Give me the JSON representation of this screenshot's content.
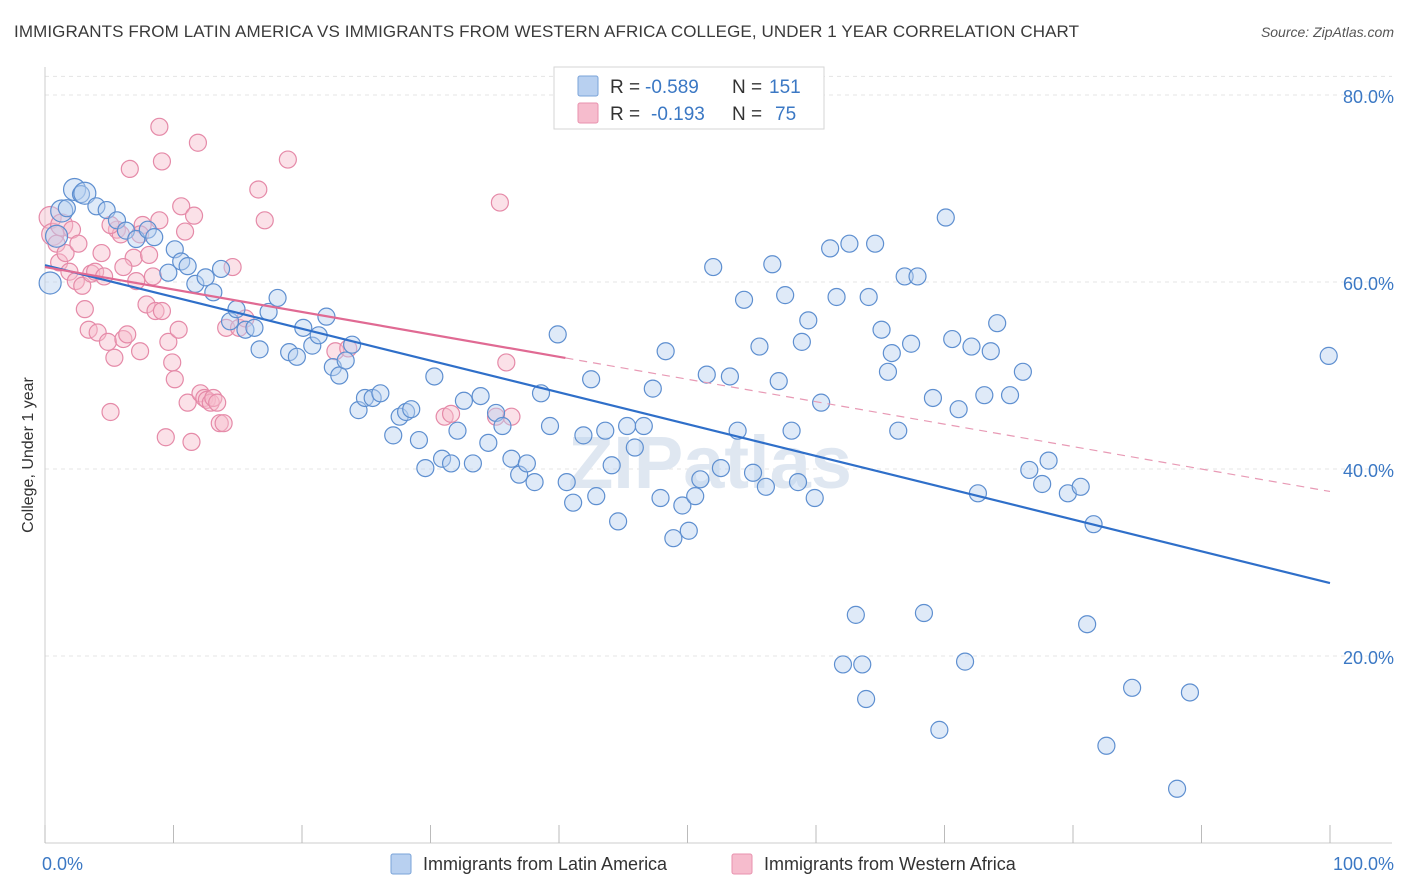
{
  "title": "IMMIGRANTS FROM LATIN AMERICA VS IMMIGRANTS FROM WESTERN AFRICA COLLEGE, UNDER 1 YEAR CORRELATION CHART",
  "source": "Source: ZipAtlas.com",
  "watermark": "ZIPatlas",
  "legend": {
    "series1": {
      "r_label": "R =",
      "r_value": "-0.589",
      "n_label": "N =",
      "n_value": "151"
    },
    "series2": {
      "r_label": "R =",
      "r_value": "-0.193",
      "n_label": "N =",
      "n_value": "75"
    }
  },
  "colors": {
    "blue": "#3b78c4",
    "blue_fill": "#b8d0f0",
    "pink": "#e06a93",
    "pink_fill": "#f6bccd"
  },
  "chart_data": {
    "type": "scatter",
    "title": "IMMIGRANTS FROM LATIN AMERICA VS IMMIGRANTS FROM WESTERN AFRICA COLLEGE, UNDER 1 YEAR CORRELATION CHART",
    "xlabel": "",
    "ylabel": "College, Under 1 year",
    "xlim": [
      0,
      100
    ],
    "ylim": [
      0,
      83
    ],
    "x_tick_labels": [
      "0.0%",
      "100.0%"
    ],
    "y_ticks": [
      20,
      40,
      60,
      80
    ],
    "y_tick_labels": [
      "20.0%",
      "40.0%",
      "60.0%",
      "80.0%"
    ],
    "legend_position": "top-center",
    "series": [
      {
        "name": "Immigrants from Latin America",
        "color": "#3b78c4",
        "trend": {
          "x": [
            0,
            100
          ],
          "y": [
            61.8,
            27.8
          ],
          "solid_until": 100
        },
        "points": [
          [
            0.4,
            59.9
          ],
          [
            0.9,
            64.9
          ],
          [
            1.3,
            67.6
          ],
          [
            1.7,
            67.9
          ],
          [
            2.3,
            69.9
          ],
          [
            2.8,
            69.4
          ],
          [
            3.1,
            69.5
          ],
          [
            4.0,
            68.1
          ],
          [
            4.8,
            67.7
          ],
          [
            5.6,
            66.6
          ],
          [
            6.3,
            65.5
          ],
          [
            7.1,
            64.6
          ],
          [
            8.0,
            65.6
          ],
          [
            8.5,
            64.8
          ],
          [
            9.6,
            61.0
          ],
          [
            10.1,
            63.5
          ],
          [
            10.6,
            62.2
          ],
          [
            11.1,
            61.7
          ],
          [
            11.7,
            59.8
          ],
          [
            12.5,
            60.5
          ],
          [
            13.1,
            58.9
          ],
          [
            13.7,
            61.4
          ],
          [
            14.4,
            55.8
          ],
          [
            14.9,
            57.1
          ],
          [
            15.6,
            54.9
          ],
          [
            16.3,
            55.1
          ],
          [
            16.7,
            52.8
          ],
          [
            17.4,
            56.8
          ],
          [
            18.1,
            58.3
          ],
          [
            19.0,
            52.5
          ],
          [
            19.6,
            52.0
          ],
          [
            20.1,
            55.1
          ],
          [
            20.8,
            53.2
          ],
          [
            21.3,
            54.3
          ],
          [
            21.9,
            56.3
          ],
          [
            22.4,
            50.9
          ],
          [
            22.9,
            50.0
          ],
          [
            23.4,
            51.6
          ],
          [
            23.9,
            53.3
          ],
          [
            24.4,
            46.3
          ],
          [
            24.9,
            47.6
          ],
          [
            25.5,
            47.6
          ],
          [
            26.1,
            48.1
          ],
          [
            27.1,
            43.6
          ],
          [
            27.6,
            45.6
          ],
          [
            28.1,
            46.1
          ],
          [
            28.5,
            46.4
          ],
          [
            29.1,
            43.1
          ],
          [
            29.6,
            40.1
          ],
          [
            30.3,
            49.9
          ],
          [
            30.9,
            41.1
          ],
          [
            31.6,
            40.6
          ],
          [
            32.1,
            44.1
          ],
          [
            32.6,
            47.3
          ],
          [
            33.3,
            40.6
          ],
          [
            33.9,
            47.8
          ],
          [
            34.5,
            42.8
          ],
          [
            35.1,
            46.0
          ],
          [
            35.6,
            44.6
          ],
          [
            36.3,
            41.1
          ],
          [
            36.9,
            39.4
          ],
          [
            37.5,
            40.6
          ],
          [
            38.1,
            38.6
          ],
          [
            38.6,
            48.1
          ],
          [
            39.3,
            44.6
          ],
          [
            39.9,
            54.4
          ],
          [
            40.6,
            38.6
          ],
          [
            41.1,
            36.4
          ],
          [
            41.9,
            43.6
          ],
          [
            42.5,
            49.6
          ],
          [
            42.9,
            37.1
          ],
          [
            43.6,
            44.1
          ],
          [
            44.1,
            40.4
          ],
          [
            44.6,
            34.4
          ],
          [
            45.3,
            44.6
          ],
          [
            45.9,
            42.3
          ],
          [
            46.6,
            44.6
          ],
          [
            47.3,
            48.6
          ],
          [
            47.9,
            36.9
          ],
          [
            48.3,
            52.6
          ],
          [
            48.9,
            32.6
          ],
          [
            49.6,
            36.1
          ],
          [
            50.1,
            33.4
          ],
          [
            50.6,
            37.1
          ],
          [
            51.0,
            38.9
          ],
          [
            51.5,
            50.1
          ],
          [
            52.0,
            61.6
          ],
          [
            52.6,
            40.1
          ],
          [
            53.3,
            49.9
          ],
          [
            53.9,
            44.1
          ],
          [
            54.4,
            58.1
          ],
          [
            55.1,
            39.6
          ],
          [
            55.6,
            53.1
          ],
          [
            56.1,
            38.1
          ],
          [
            56.6,
            61.9
          ],
          [
            57.1,
            49.4
          ],
          [
            57.6,
            58.6
          ],
          [
            58.1,
            44.1
          ],
          [
            58.6,
            38.6
          ],
          [
            58.9,
            53.6
          ],
          [
            59.4,
            55.9
          ],
          [
            59.9,
            36.9
          ],
          [
            60.4,
            47.1
          ],
          [
            61.1,
            63.6
          ],
          [
            61.6,
            58.4
          ],
          [
            62.1,
            19.1
          ],
          [
            62.6,
            64.1
          ],
          [
            63.1,
            24.4
          ],
          [
            63.6,
            19.1
          ],
          [
            63.9,
            15.4
          ],
          [
            64.1,
            58.4
          ],
          [
            64.6,
            64.1
          ],
          [
            65.1,
            54.9
          ],
          [
            65.6,
            50.4
          ],
          [
            65.9,
            52.4
          ],
          [
            66.4,
            44.1
          ],
          [
            66.9,
            60.6
          ],
          [
            67.4,
            53.4
          ],
          [
            67.9,
            60.6
          ],
          [
            68.4,
            24.6
          ],
          [
            69.1,
            47.6
          ],
          [
            69.6,
            12.1
          ],
          [
            70.1,
            66.9
          ],
          [
            70.6,
            53.9
          ],
          [
            71.1,
            46.4
          ],
          [
            71.6,
            19.4
          ],
          [
            72.1,
            53.1
          ],
          [
            72.6,
            37.4
          ],
          [
            73.1,
            47.9
          ],
          [
            73.6,
            52.6
          ],
          [
            74.1,
            55.6
          ],
          [
            75.1,
            47.9
          ],
          [
            76.1,
            50.4
          ],
          [
            76.6,
            39.9
          ],
          [
            77.6,
            38.4
          ],
          [
            78.1,
            40.9
          ],
          [
            79.6,
            37.4
          ],
          [
            80.6,
            38.1
          ],
          [
            81.1,
            23.4
          ],
          [
            81.6,
            34.1
          ],
          [
            82.6,
            10.4
          ],
          [
            84.6,
            16.6
          ],
          [
            88.1,
            5.8
          ],
          [
            89.1,
            16.1
          ],
          [
            99.9,
            52.1
          ]
        ],
        "large_points": [
          [
            0.4,
            59.9
          ],
          [
            1.3,
            67.6
          ],
          [
            2.3,
            69.9
          ],
          [
            3.1,
            69.5
          ],
          [
            0.9,
            64.9
          ]
        ]
      },
      {
        "name": "Immigrants from Western Africa",
        "color": "#e06a93",
        "trend": {
          "x": [
            0,
            100
          ],
          "y": [
            61.6,
            37.6
          ],
          "solid_until": 40.5
        },
        "points": [
          [
            0.4,
            66.9
          ],
          [
            0.6,
            65.1
          ],
          [
            0.9,
            64.1
          ],
          [
            1.1,
            62.1
          ],
          [
            1.3,
            66.1
          ],
          [
            1.6,
            63.1
          ],
          [
            1.9,
            61.1
          ],
          [
            2.1,
            65.6
          ],
          [
            2.4,
            60.1
          ],
          [
            2.6,
            64.1
          ],
          [
            2.9,
            59.6
          ],
          [
            3.1,
            57.1
          ],
          [
            3.4,
            54.9
          ],
          [
            3.6,
            60.9
          ],
          [
            3.9,
            61.1
          ],
          [
            4.1,
            54.6
          ],
          [
            4.4,
            63.1
          ],
          [
            4.6,
            60.6
          ],
          [
            4.9,
            53.6
          ],
          [
            5.1,
            46.1
          ],
          [
            5.4,
            51.9
          ],
          [
            5.6,
            65.6
          ],
          [
            5.9,
            65.1
          ],
          [
            6.1,
            53.9
          ],
          [
            6.4,
            54.4
          ],
          [
            6.6,
            72.1
          ],
          [
            6.9,
            62.6
          ],
          [
            7.1,
            60.1
          ],
          [
            7.4,
            52.6
          ],
          [
            7.6,
            66.1
          ],
          [
            7.9,
            57.6
          ],
          [
            8.1,
            62.9
          ],
          [
            8.4,
            60.6
          ],
          [
            8.6,
            56.9
          ],
          [
            8.9,
            76.6
          ],
          [
            9.1,
            72.9
          ],
          [
            9.4,
            43.4
          ],
          [
            9.6,
            53.6
          ],
          [
            9.9,
            51.4
          ],
          [
            10.1,
            49.6
          ],
          [
            10.4,
            54.9
          ],
          [
            10.6,
            68.1
          ],
          [
            10.9,
            65.4
          ],
          [
            11.1,
            47.1
          ],
          [
            11.4,
            42.9
          ],
          [
            11.6,
            67.1
          ],
          [
            11.9,
            74.9
          ],
          [
            12.1,
            48.1
          ],
          [
            12.4,
            47.6
          ],
          [
            12.6,
            47.4
          ],
          [
            12.9,
            47.1
          ],
          [
            13.1,
            47.6
          ],
          [
            13.4,
            47.1
          ],
          [
            13.6,
            44.9
          ],
          [
            14.1,
            55.1
          ],
          [
            14.6,
            61.6
          ],
          [
            15.1,
            55.1
          ],
          [
            15.6,
            56.1
          ],
          [
            16.6,
            69.9
          ],
          [
            17.1,
            66.6
          ],
          [
            18.9,
            73.1
          ],
          [
            22.6,
            52.6
          ],
          [
            23.6,
            52.9
          ],
          [
            31.1,
            45.6
          ],
          [
            31.6,
            45.9
          ],
          [
            35.1,
            45.6
          ],
          [
            36.3,
            45.6
          ],
          [
            35.9,
            51.4
          ],
          [
            35.4,
            68.5
          ],
          [
            13.9,
            44.9
          ],
          [
            9.1,
            56.9
          ],
          [
            5.1,
            66.1
          ],
          [
            7.4,
            65.1
          ],
          [
            6.1,
            61.6
          ],
          [
            8.9,
            66.6
          ]
        ],
        "large_points": [
          [
            0.4,
            66.9
          ],
          [
            0.6,
            65.1
          ],
          [
            1.3,
            66.1
          ]
        ]
      }
    ]
  },
  "bottom_legend": {
    "series1": "Immigrants from Latin America",
    "series2": "Immigrants from Western Africa"
  },
  "axis": {
    "ylabel": "College, Under 1 year",
    "x_left": "0.0%",
    "x_right": "100.0%"
  }
}
